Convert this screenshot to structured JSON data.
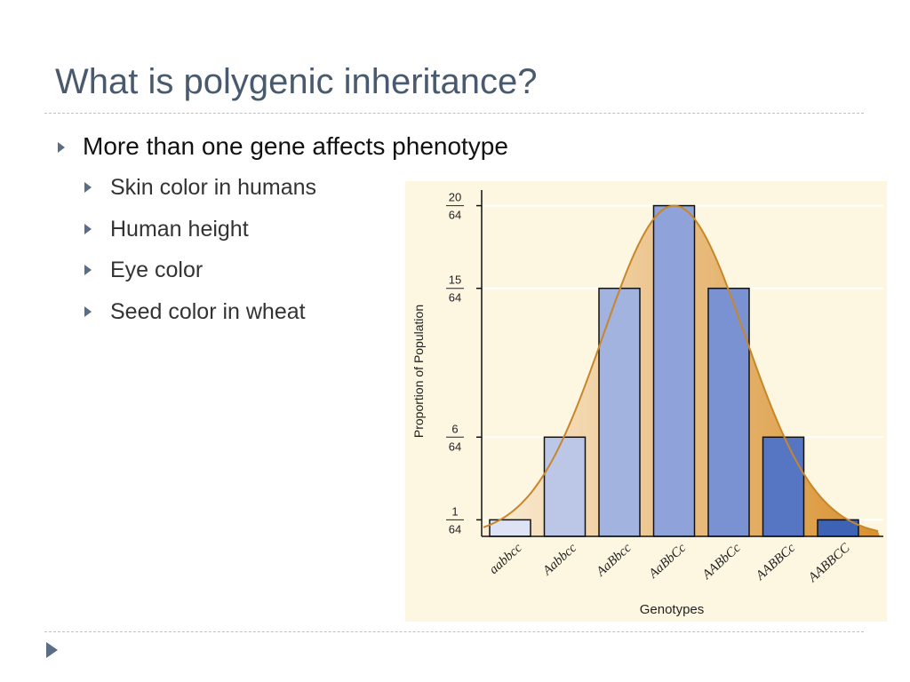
{
  "slide": {
    "title": "What is polygenic inheritance?",
    "bullet": "More than one gene affects phenotype",
    "sub_bullets": [
      "Skin color in humans",
      "Human height",
      "Eye color",
      "Seed color in wheat"
    ]
  },
  "chart_data": {
    "type": "bar",
    "categories": [
      "aabbcc",
      "Aabbcc",
      "AaBbcc",
      "AaBbCc",
      "AABbCc",
      "AABBCc",
      "AABBCC"
    ],
    "values": [
      1,
      6,
      15,
      20,
      15,
      6,
      1
    ],
    "bar_colors": [
      "#dde3f4",
      "#bcc7e8",
      "#a3b3e0",
      "#8fa3da",
      "#7b92d2",
      "#5675c2",
      "#3e62b4"
    ],
    "ytick_values": [
      1,
      6,
      15,
      20
    ],
    "ytick_numerators": [
      "1",
      "6",
      "15",
      "20"
    ],
    "ytick_denominator": "64",
    "ylim": [
      0,
      20.3
    ],
    "xlabel": "Genotypes",
    "ylabel": "Proportion of Population",
    "curve": "normal distribution overlay",
    "colors": {
      "panel_bg": "#fdf6e0",
      "curve_stroke": "#c8862a",
      "fill_light": "#fbeed8",
      "fill_dark": "#d8902e",
      "bar_stroke": "#111111"
    }
  }
}
